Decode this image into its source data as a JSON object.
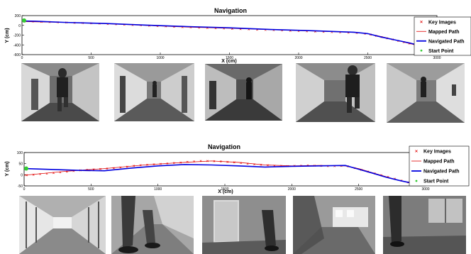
{
  "chart_data": [
    {
      "type": "line",
      "title": "Navigation",
      "xlabel": "X (cm)",
      "ylabel": "Y (cm)",
      "xlim": [
        0,
        3000
      ],
      "ylim": [
        -600,
        200
      ],
      "x_ticks": [
        0,
        500,
        1000,
        1500,
        2000,
        2500,
        3000
      ],
      "y_ticks": [
        200,
        0,
        -200,
        -400,
        -600
      ],
      "x_tick_labels": [
        "0",
        "500",
        "1000",
        "1500",
        "2000",
        "2500",
        "3000"
      ],
      "y_tick_labels": [
        "200",
        "0",
        "-200",
        "-400",
        "-600"
      ],
      "legend_position": "top-right",
      "grid": false,
      "series": [
        {
          "name": "Key Images",
          "style": "markers",
          "color": "#e00000",
          "x": [
            20,
            80,
            140,
            200,
            260,
            320,
            380,
            440,
            500,
            560,
            620,
            680,
            740,
            800,
            860,
            920,
            980,
            1040,
            1100,
            1160,
            1220,
            1280,
            1340,
            1400,
            1460,
            1520,
            1580,
            1640,
            1700,
            1760,
            1820,
            1880,
            1940,
            2000,
            2060,
            2120,
            2180,
            2240,
            2300,
            2360,
            2420,
            2480,
            2520,
            2560,
            2600,
            2640,
            2680,
            2720,
            2760,
            2800,
            2840,
            2880,
            2920,
            2960
          ],
          "y": [
            80,
            78,
            72,
            68,
            62,
            58,
            52,
            48,
            42,
            36,
            28,
            22,
            14,
            8,
            2,
            -6,
            -14,
            -20,
            -28,
            -36,
            -40,
            -46,
            -52,
            -58,
            -64,
            -70,
            -76,
            -82,
            -88,
            -92,
            -98,
            -104,
            -110,
            -116,
            -122,
            -126,
            -132,
            -138,
            -144,
            -150,
            -156,
            -170,
            -190,
            -215,
            -240,
            -265,
            -290,
            -320,
            -345,
            -370,
            -400,
            -430,
            -470,
            -520
          ]
        },
        {
          "name": "Mapped Path",
          "style": "line",
          "color": "#e00000",
          "x": [
            0,
            300,
            600,
            900,
            1200,
            1500,
            1800,
            2100,
            2400,
            2500,
            2600,
            2700,
            2800,
            2900,
            3000
          ],
          "y": [
            80,
            60,
            35,
            0,
            -35,
            -60,
            -90,
            -115,
            -145,
            -170,
            -230,
            -300,
            -370,
            -440,
            -560
          ]
        },
        {
          "name": "Navigated Path",
          "style": "line",
          "color": "#0000e0",
          "x": [
            0,
            100,
            300,
            600,
            900,
            1200,
            1500,
            1800,
            2100,
            2400,
            2500,
            2600,
            2700,
            2800,
            2900,
            3000
          ],
          "y": [
            90,
            85,
            62,
            38,
            5,
            -25,
            -50,
            -85,
            -110,
            -140,
            -170,
            -240,
            -300,
            -360,
            -430,
            -560
          ]
        },
        {
          "name": "Start Point",
          "style": "point",
          "color": "#33cc33",
          "x": [
            0
          ],
          "y": [
            100
          ]
        }
      ]
    },
    {
      "type": "line",
      "title": "Navigation",
      "xlabel": "X (cm)",
      "ylabel": "Y (cm)",
      "xlim": [
        0,
        3000
      ],
      "ylim": [
        -50,
        100
      ],
      "x_ticks": [
        0,
        500,
        1000,
        1500,
        2000,
        2500,
        3000
      ],
      "y_ticks": [
        100,
        50,
        0,
        -50
      ],
      "x_tick_labels": [
        "0",
        "500",
        "1000",
        "1500",
        "2000",
        "2500",
        "3000"
      ],
      "y_tick_labels": [
        "100",
        "50",
        "0",
        "-50"
      ],
      "legend_position": "top-right",
      "grid": false,
      "series": [
        {
          "name": "Key Images",
          "style": "markers",
          "color": "#e00000",
          "x": [
            20,
            70,
            120,
            170,
            220,
            270,
            320,
            370,
            420,
            470,
            520,
            570,
            620,
            670,
            720,
            770,
            820,
            870,
            920,
            970,
            1020,
            1070,
            1120,
            1170,
            1220,
            1270,
            1320,
            1370,
            1420,
            1470,
            1520,
            1570,
            1620,
            1670,
            1720,
            1770,
            1820,
            1870,
            1920,
            1970,
            2020,
            2070,
            2120,
            2170,
            2220,
            2270,
            2320,
            2370,
            2420,
            2470,
            2520,
            2570,
            2620,
            2670,
            2720,
            2770,
            2820,
            2870,
            2920
          ],
          "y": [
            -2,
            0,
            3,
            5,
            8,
            11,
            14,
            17,
            20,
            22,
            24,
            26,
            28,
            30,
            33,
            36,
            40,
            43,
            45,
            47,
            49,
            51,
            53,
            55,
            58,
            60,
            62,
            62,
            61,
            60,
            58,
            56,
            53,
            50,
            47,
            45,
            43,
            41,
            40,
            39,
            40,
            41,
            42,
            41,
            40,
            39,
            39,
            40,
            38,
            30,
            22,
            14,
            6,
            -2,
            -10,
            -18,
            -26,
            -34,
            -40
          ]
        },
        {
          "name": "Mapped Path",
          "style": "line",
          "color": "#e00000",
          "x": [
            0,
            300,
            600,
            900,
            1200,
            1400,
            1600,
            1800,
            2000,
            2200,
            2400,
            2500,
            2600,
            2700,
            2800,
            2900,
            3000
          ],
          "y": [
            -2,
            15,
            28,
            44,
            56,
            62,
            56,
            44,
            40,
            42,
            40,
            28,
            10,
            -8,
            -25,
            -40,
            -48
          ]
        },
        {
          "name": "Navigated Path",
          "style": "line",
          "color": "#0000e0",
          "x": [
            0,
            200,
            400,
            600,
            800,
            1000,
            1200,
            1400,
            1600,
            1800,
            2000,
            2200,
            2400,
            2500,
            2600,
            2700,
            2800,
            2900,
            3000
          ],
          "y": [
            28,
            24,
            20,
            18,
            30,
            40,
            46,
            44,
            40,
            35,
            38,
            40,
            42,
            25,
            8,
            -10,
            -25,
            -38,
            -48
          ]
        },
        {
          "name": "Start Point",
          "style": "point",
          "color": "#33cc33",
          "x": [
            0
          ],
          "y": [
            28
          ]
        }
      ]
    }
  ],
  "colors": {
    "key_images": "#e00000",
    "mapped_path": "#e00000",
    "navigated_path": "#0000e0",
    "start_point": "#33cc33"
  },
  "photos": [
    {
      "row": 0,
      "scene": "corridor-with-walker-center"
    },
    {
      "row": 0,
      "scene": "corridor-with-distant-walker"
    },
    {
      "row": 0,
      "scene": "corridor-dark-walker"
    },
    {
      "row": 0,
      "scene": "corridor-walker-right"
    },
    {
      "row": 0,
      "scene": "corridor-walker-far-right"
    },
    {
      "row": 1,
      "scene": "glass-hallway"
    },
    {
      "row": 1,
      "scene": "legs-walking"
    },
    {
      "row": 1,
      "scene": "door-and-legs"
    },
    {
      "row": 1,
      "scene": "blurred-office-corridor"
    },
    {
      "row": 1,
      "scene": "legs-near-window"
    }
  ]
}
